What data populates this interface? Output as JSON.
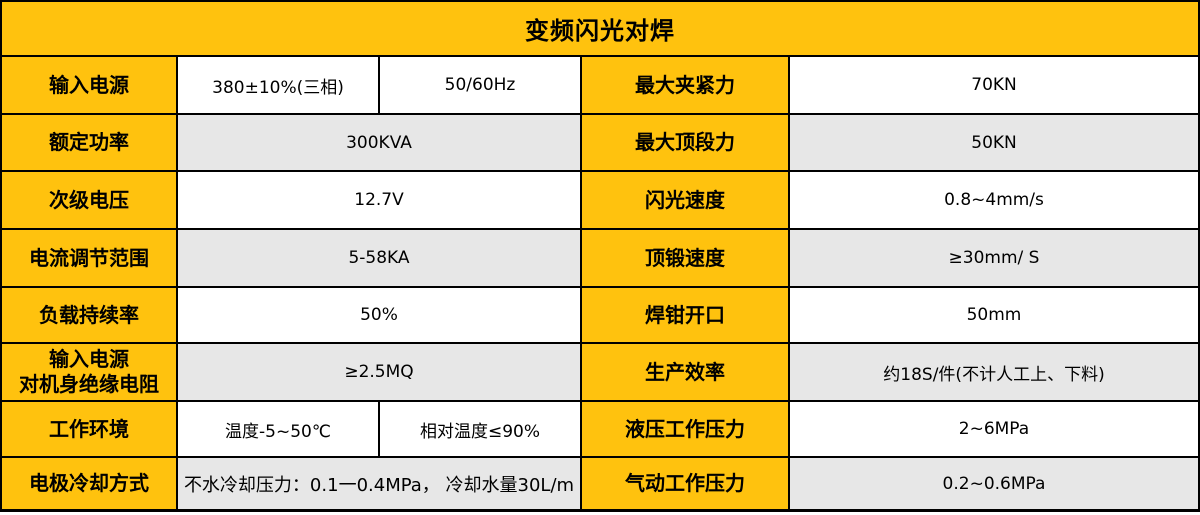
{
  "header": {
    "title": "变频闪光对焊"
  },
  "colors": {
    "accent_yellow": "#FFC20E",
    "row_gray": "#E7E7E7",
    "row_white": "#FFFFFF",
    "border_black": "#000000"
  },
  "rows": [
    {
      "left_label": "输入电源",
      "left_value_a": "380±10%(三相)",
      "left_value_b": "50/60Hz",
      "right_label": "最大夹紧力",
      "right_value": "70KN"
    },
    {
      "left_label": "额定功率",
      "left_value": "300KVA",
      "right_label": "最大顶段力",
      "right_value": "50KN"
    },
    {
      "left_label": "次级电压",
      "left_value": "12.7V",
      "right_label": "闪光速度",
      "right_value": "0.8~4mm/s"
    },
    {
      "left_label": "电流调节范围",
      "left_value": "5-58KA",
      "right_label": "顶锻速度",
      "right_value": "≥30mm/ S"
    },
    {
      "left_label": "负载持续率",
      "left_value": "50%",
      "right_label": "焊钳开口",
      "right_value": "50mm"
    },
    {
      "left_label": "输入电源\n对机身绝缘电阻",
      "left_value": "≥2.5MQ",
      "right_label": "生产效率",
      "right_value": "约18S/件(不计人工上、下料)"
    },
    {
      "left_label": "工作环境",
      "left_value_a": "温度-5~50℃",
      "left_value_b": "相对温度≤90%",
      "right_label": "液压工作压力",
      "right_value": "2~6MPa"
    },
    {
      "left_label": "电极冷却方式",
      "left_value": "不水冷却压力：0.1一0.4MPa， 冷却水量30L/m",
      "right_label": "气动工作压力",
      "right_value": "0.2~0.6MPa"
    }
  ]
}
